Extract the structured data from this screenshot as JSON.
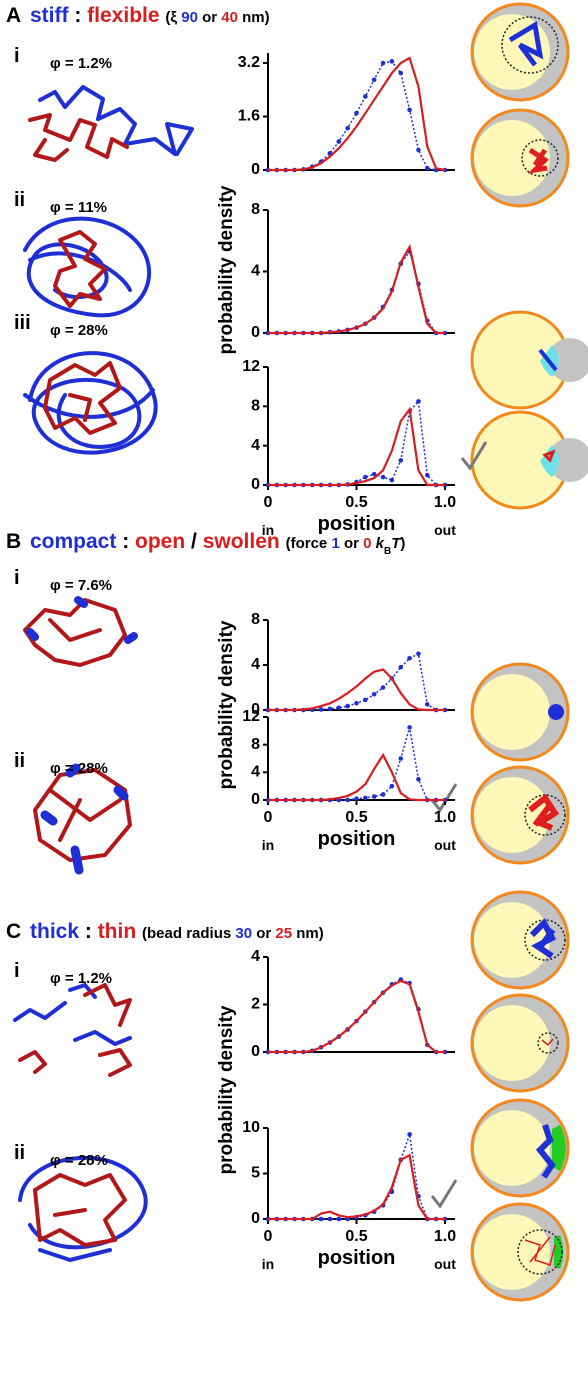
{
  "panels": [
    {
      "letter": "A",
      "title": [
        {
          "text": "stiff",
          "color": "#1e2fd6"
        },
        {
          "text": " : ",
          "color": "#000000"
        },
        {
          "text": "flexible",
          "color": "#d81e1e"
        }
      ],
      "note": [
        {
          "text": "(ξ ",
          "color": "#000000"
        },
        {
          "text": "90",
          "color": "#1e2fd6"
        },
        {
          "text": " or ",
          "color": "#000000"
        },
        {
          "text": "40",
          "color": "#d81e1e"
        },
        {
          "text": " nm)",
          "color": "#000000"
        }
      ],
      "ylabel": "probability density",
      "rows": [
        {
          "numeral": "i",
          "phi": "φ = 1.2%"
        },
        {
          "numeral": "ii",
          "phi": "φ = 11%"
        },
        {
          "numeral": "iii",
          "phi": "φ = 28%"
        }
      ]
    },
    {
      "letter": "B",
      "title": [
        {
          "text": "compact",
          "color": "#1e2fd6"
        },
        {
          "text": " : ",
          "color": "#000000"
        },
        {
          "text": "open",
          "color": "#d81e1e"
        },
        {
          "text": " / ",
          "color": "#000000"
        },
        {
          "text": "swollen",
          "color": "#d81e1e"
        }
      ],
      "note": [
        {
          "text": "(force ",
          "color": "#000000"
        },
        {
          "text": "1",
          "color": "#1e2fd6"
        },
        {
          "text": " or ",
          "color": "#000000"
        },
        {
          "text": "0",
          "color": "#d81e1e"
        },
        {
          "text": " k",
          "color": "#000000",
          "format": "italic"
        },
        {
          "text": "B",
          "color": "#000000",
          "format": "sub"
        },
        {
          "text": "T",
          "color": "#000000",
          "format": "italic"
        },
        {
          "text": ")",
          "color": "#000000"
        }
      ],
      "ylabel": "probability density",
      "rows": [
        {
          "numeral": "i",
          "phi": "φ = 7.6%"
        },
        {
          "numeral": "ii",
          "phi": "φ = 28%"
        }
      ]
    },
    {
      "letter": "C",
      "title": [
        {
          "text": "thick",
          "color": "#1e2fd6"
        },
        {
          "text": " : ",
          "color": "#000000"
        },
        {
          "text": "thin",
          "color": "#d81e1e"
        }
      ],
      "note": [
        {
          "text": "(bead radius ",
          "color": "#000000"
        },
        {
          "text": "30",
          "color": "#1e2fd6"
        },
        {
          "text": " or ",
          "color": "#000000"
        },
        {
          "text": "25",
          "color": "#d81e1e"
        },
        {
          "text": " nm)",
          "color": "#000000"
        }
      ],
      "ylabel": "probability density",
      "rows": [
        {
          "numeral": "i",
          "phi": "φ = 1.2%"
        },
        {
          "numeral": "ii",
          "phi": "φ = 28%"
        }
      ]
    }
  ],
  "chart_data": [
    {
      "type": "line",
      "x": [
        0,
        0.05,
        0.1,
        0.15,
        0.2,
        0.25,
        0.3,
        0.35,
        0.4,
        0.45,
        0.5,
        0.55,
        0.6,
        0.65,
        0.7,
        0.75,
        0.8,
        0.85,
        0.9,
        0.95,
        1
      ],
      "xlim": [
        0,
        1
      ],
      "ylim": [
        0,
        3.5
      ],
      "yticks": [
        0,
        1.6,
        3.2
      ],
      "series": [
        {
          "color": "#1e2fd6",
          "values": [
            0,
            0,
            0,
            0,
            0.02,
            0.1,
            0.25,
            0.5,
            0.85,
            1.25,
            1.7,
            2.2,
            2.7,
            3.2,
            3.25,
            2.9,
            1.8,
            0.6,
            0.05,
            0,
            0
          ]
        },
        {
          "color": "#d81e1e",
          "values": [
            0,
            0,
            0,
            0,
            0.02,
            0.08,
            0.2,
            0.4,
            0.65,
            0.95,
            1.3,
            1.7,
            2.1,
            2.5,
            2.9,
            3.2,
            3.35,
            2.5,
            0.7,
            0.05,
            0
          ]
        }
      ]
    },
    {
      "type": "line",
      "x": [
        0,
        0.05,
        0.1,
        0.15,
        0.2,
        0.25,
        0.3,
        0.35,
        0.4,
        0.45,
        0.5,
        0.55,
        0.6,
        0.65,
        0.7,
        0.75,
        0.8,
        0.85,
        0.9,
        0.95,
        1
      ],
      "xlim": [
        0,
        1
      ],
      "ylim": [
        0,
        8
      ],
      "yticks": [
        0,
        4,
        8
      ],
      "series": [
        {
          "color": "#1e2fd6",
          "values": [
            0,
            0,
            0,
            0,
            0,
            0,
            0,
            0.05,
            0.1,
            0.2,
            0.35,
            0.6,
            1.0,
            1.7,
            2.8,
            4.5,
            5.3,
            3.2,
            0.8,
            0,
            0
          ]
        },
        {
          "color": "#d81e1e",
          "values": [
            0,
            0,
            0,
            0,
            0,
            0,
            0,
            0.05,
            0.1,
            0.2,
            0.35,
            0.6,
            1.0,
            1.6,
            2.7,
            4.6,
            5.6,
            3.0,
            0.6,
            0,
            0
          ]
        }
      ]
    },
    {
      "type": "line",
      "x": [
        0,
        0.05,
        0.1,
        0.15,
        0.2,
        0.25,
        0.3,
        0.35,
        0.4,
        0.45,
        0.5,
        0.55,
        0.6,
        0.65,
        0.7,
        0.75,
        0.8,
        0.85,
        0.9,
        0.95,
        1
      ],
      "xlim": [
        0,
        1
      ],
      "ylim": [
        0,
        12
      ],
      "yticks": [
        0,
        4,
        8,
        12
      ],
      "xticks": [
        0,
        0.5,
        {
          "value": 1,
          "label": "1.0"
        }
      ],
      "xlabel": "position",
      "x_end_labels": [
        "in",
        "out"
      ],
      "series": [
        {
          "color": "#1e2fd6",
          "values": [
            0,
            0,
            0,
            0,
            0,
            0,
            0,
            0,
            0,
            0.05,
            0.3,
            0.8,
            1.1,
            0.8,
            0.5,
            2.5,
            7.5,
            8.5,
            1.0,
            0,
            0
          ]
        },
        {
          "color": "#d81e1e",
          "values": [
            0,
            0,
            0,
            0,
            0,
            0,
            0,
            0,
            0,
            0.05,
            0.2,
            0.4,
            0.7,
            1.5,
            3.5,
            6.5,
            7.7,
            1.5,
            0,
            0,
            0
          ]
        }
      ]
    },
    {
      "type": "line",
      "x": [
        0,
        0.05,
        0.1,
        0.15,
        0.2,
        0.25,
        0.3,
        0.35,
        0.4,
        0.45,
        0.5,
        0.55,
        0.6,
        0.65,
        0.7,
        0.75,
        0.8,
        0.85,
        0.9,
        0.95,
        1
      ],
      "xlim": [
        0,
        1
      ],
      "ylim": [
        0,
        8
      ],
      "yticks": [
        0,
        4,
        8
      ],
      "series": [
        {
          "color": "#1e2fd6",
          "values": [
            0,
            0,
            0,
            0,
            0,
            0.02,
            0.05,
            0.1,
            0.2,
            0.35,
            0.6,
            0.9,
            1.4,
            2.0,
            2.8,
            3.8,
            4.6,
            5.0,
            0.5,
            0,
            0
          ]
        },
        {
          "color": "#d81e1e",
          "values": [
            0,
            0,
            0,
            0,
            0.05,
            0.15,
            0.35,
            0.6,
            1.0,
            1.5,
            2.1,
            2.8,
            3.4,
            3.6,
            2.8,
            1.5,
            0.5,
            0.05,
            0,
            0,
            0
          ]
        }
      ]
    },
    {
      "type": "line",
      "x": [
        0,
        0.05,
        0.1,
        0.15,
        0.2,
        0.25,
        0.3,
        0.35,
        0.4,
        0.45,
        0.5,
        0.55,
        0.6,
        0.65,
        0.7,
        0.75,
        0.8,
        0.85,
        0.9,
        0.95,
        1
      ],
      "xlim": [
        0,
        1
      ],
      "ylim": [
        0,
        12
      ],
      "yticks": [
        0,
        4,
        8,
        12
      ],
      "xticks": [
        0,
        0.5,
        {
          "value": 1,
          "label": "1.0"
        }
      ],
      "xlabel": "position",
      "x_end_labels": [
        "in",
        "out"
      ],
      "series": [
        {
          "color": "#1e2fd6",
          "values": [
            0,
            0,
            0,
            0,
            0,
            0,
            0,
            0,
            0,
            0,
            0.2,
            0.3,
            0.5,
            0.8,
            2.0,
            6.0,
            10.5,
            3.0,
            0,
            0,
            0
          ]
        },
        {
          "color": "#d81e1e",
          "values": [
            0,
            0,
            0,
            0,
            0,
            0,
            0,
            0.1,
            0.3,
            0.6,
            1.2,
            2.3,
            4.5,
            6.5,
            4.0,
            1.0,
            0.1,
            0,
            0,
            0,
            0
          ]
        }
      ]
    },
    {
      "type": "line",
      "x": [
        0,
        0.05,
        0.1,
        0.15,
        0.2,
        0.25,
        0.3,
        0.35,
        0.4,
        0.45,
        0.5,
        0.55,
        0.6,
        0.65,
        0.7,
        0.75,
        0.8,
        0.85,
        0.9,
        0.95,
        1
      ],
      "xlim": [
        0,
        1
      ],
      "ylim": [
        0,
        4
      ],
      "yticks": [
        0,
        2,
        4
      ],
      "series": [
        {
          "color": "#1e2fd6",
          "values": [
            0,
            0,
            0,
            0,
            0,
            0.05,
            0.2,
            0.4,
            0.65,
            0.95,
            1.3,
            1.7,
            2.1,
            2.5,
            2.85,
            3.05,
            2.9,
            1.8,
            0.3,
            0,
            0
          ]
        },
        {
          "color": "#d81e1e",
          "values": [
            0,
            0,
            0,
            0,
            0,
            0.05,
            0.2,
            0.4,
            0.65,
            0.95,
            1.3,
            1.7,
            2.1,
            2.5,
            2.8,
            3.0,
            2.85,
            1.7,
            0.3,
            0,
            0
          ]
        }
      ]
    },
    {
      "type": "line",
      "x": [
        0,
        0.05,
        0.1,
        0.15,
        0.2,
        0.25,
        0.3,
        0.35,
        0.4,
        0.45,
        0.5,
        0.55,
        0.6,
        0.65,
        0.7,
        0.75,
        0.8,
        0.85,
        0.9,
        0.95,
        1
      ],
      "xlim": [
        0,
        1
      ],
      "ylim": [
        0,
        10
      ],
      "yticks": [
        0,
        5,
        10
      ],
      "xticks": [
        0,
        0.5,
        {
          "value": 1,
          "label": "1.0"
        }
      ],
      "xlabel": "position",
      "x_end_labels": [
        "in",
        "out"
      ],
      "series": [
        {
          "color": "#1e2fd6",
          "values": [
            0,
            0,
            0,
            0,
            0,
            0,
            0,
            0,
            0,
            0,
            0.2,
            0.4,
            0.8,
            1.5,
            3.0,
            6.5,
            9.3,
            2.5,
            0,
            0,
            0
          ]
        },
        {
          "color": "#d81e1e",
          "values": [
            0,
            0,
            0,
            0,
            0,
            0,
            0.6,
            0.8,
            0.4,
            0.2,
            0.3,
            0.5,
            0.9,
            1.6,
            3.5,
            6.5,
            7.0,
            1.5,
            0,
            0,
            0
          ]
        }
      ]
    }
  ]
}
